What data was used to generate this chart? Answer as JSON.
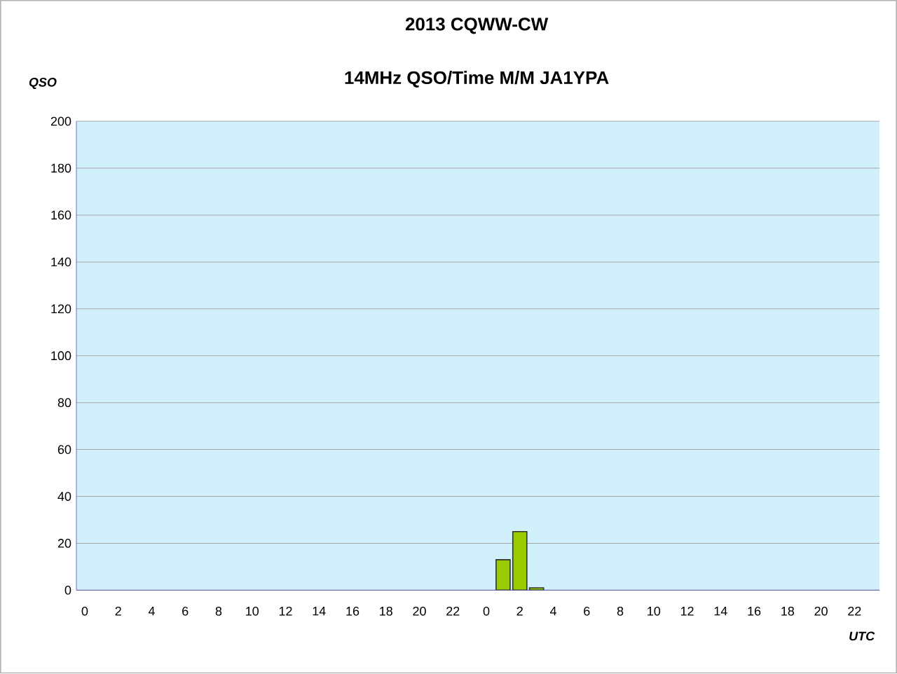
{
  "chart_data": {
    "type": "bar",
    "title": "2013  CQWW-CW",
    "subtitle": "14MHz QSO/Time  M/M JA1YPA",
    "ylabel": "QSO",
    "xlabel": "UTC",
    "categories": [
      "0",
      null,
      "2",
      null,
      "4",
      null,
      "6",
      null,
      "8",
      null,
      "10",
      null,
      "12",
      null,
      "14",
      null,
      "16",
      null,
      "18",
      null,
      "20",
      null,
      "22",
      null,
      "0",
      null,
      "2",
      null,
      "4",
      null,
      "6",
      null,
      "8",
      null,
      "10",
      null,
      "12",
      null,
      "14",
      null,
      "16",
      null,
      "18",
      null,
      "20",
      null,
      "22",
      null
    ],
    "values": [
      null,
      null,
      null,
      null,
      null,
      null,
      null,
      null,
      null,
      null,
      null,
      null,
      null,
      null,
      null,
      null,
      null,
      null,
      null,
      null,
      null,
      null,
      null,
      null,
      null,
      13,
      25,
      1,
      null,
      null,
      null,
      null,
      null,
      null,
      null,
      null,
      null,
      null,
      null,
      null,
      null,
      null,
      null,
      null,
      null,
      null,
      null,
      null
    ],
    "color": "#99cc00",
    "ylim": [
      0,
      200
    ],
    "yticks": [
      0,
      20,
      40,
      60,
      80,
      100,
      120,
      140,
      160,
      180,
      200
    ],
    "grid": "y"
  }
}
